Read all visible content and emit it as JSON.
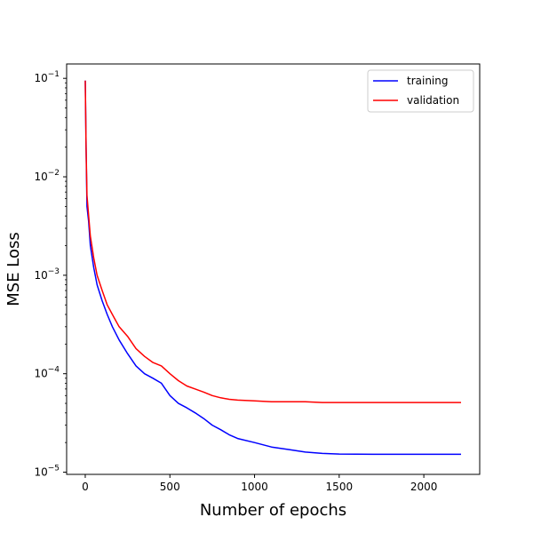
{
  "chart_data": {
    "type": "line",
    "title": "",
    "xlabel": "Number of epochs",
    "ylabel": "MSE Loss",
    "xlim": [
      -110,
      2330
    ],
    "ylim": [
      9.5e-06,
      0.14
    ],
    "yscale": "log",
    "grid": false,
    "legend_position": "top-right",
    "x_ticks": [
      {
        "value": 0,
        "label": "0"
      },
      {
        "value": 500,
        "label": "500"
      },
      {
        "value": 1000,
        "label": "1000"
      },
      {
        "value": 1500,
        "label": "1500"
      },
      {
        "value": 2000,
        "label": "2000"
      }
    ],
    "y_ticks": [
      {
        "exp": -5,
        "label_base": "10",
        "label_exp": "−5"
      },
      {
        "exp": -4,
        "label_base": "10",
        "label_exp": "−4"
      },
      {
        "exp": -3,
        "label_base": "10",
        "label_exp": "−3"
      },
      {
        "exp": -2,
        "label_base": "10",
        "label_exp": "−2"
      },
      {
        "exp": -1,
        "label_base": "10",
        "label_exp": "−1"
      }
    ],
    "series": [
      {
        "name": "training",
        "color": "#0000ff",
        "x": [
          0,
          5,
          10,
          20,
          30,
          50,
          70,
          100,
          130,
          160,
          200,
          250,
          300,
          350,
          400,
          450,
          500,
          550,
          600,
          650,
          700,
          750,
          800,
          850,
          900,
          1000,
          1100,
          1200,
          1300,
          1400,
          1500,
          1700,
          2000,
          2220
        ],
        "y": [
          0.095,
          0.02,
          0.005,
          0.0035,
          0.002,
          0.0012,
          0.0008,
          0.00055,
          0.0004,
          0.0003,
          0.00022,
          0.00016,
          0.00012,
          0.0001,
          9e-05,
          8e-05,
          6e-05,
          5e-05,
          4.5e-05,
          4e-05,
          3.5e-05,
          3e-05,
          2.7e-05,
          2.4e-05,
          2.2e-05,
          2e-05,
          1.8e-05,
          1.7e-05,
          1.6e-05,
          1.55e-05,
          1.53e-05,
          1.52e-05,
          1.52e-05,
          1.52e-05
        ]
      },
      {
        "name": "validation",
        "color": "#ff0000",
        "x": [
          0,
          5,
          10,
          20,
          30,
          50,
          70,
          100,
          130,
          160,
          200,
          250,
          300,
          350,
          400,
          450,
          500,
          550,
          600,
          650,
          700,
          750,
          800,
          850,
          900,
          1000,
          1100,
          1200,
          1300,
          1400,
          1500,
          1700,
          2000,
          2220
        ],
        "y": [
          0.095,
          0.02,
          0.0065,
          0.004,
          0.0025,
          0.0015,
          0.001,
          0.0007,
          0.0005,
          0.0004,
          0.0003,
          0.00024,
          0.00018,
          0.00015,
          0.00013,
          0.00012,
          0.0001,
          8.5e-05,
          7.5e-05,
          7e-05,
          6.5e-05,
          6e-05,
          5.7e-05,
          5.5e-05,
          5.4e-05,
          5.3e-05,
          5.2e-05,
          5.2e-05,
          5.2e-05,
          5.1e-05,
          5.1e-05,
          5.1e-05,
          5.1e-05,
          5.1e-05
        ]
      }
    ]
  }
}
